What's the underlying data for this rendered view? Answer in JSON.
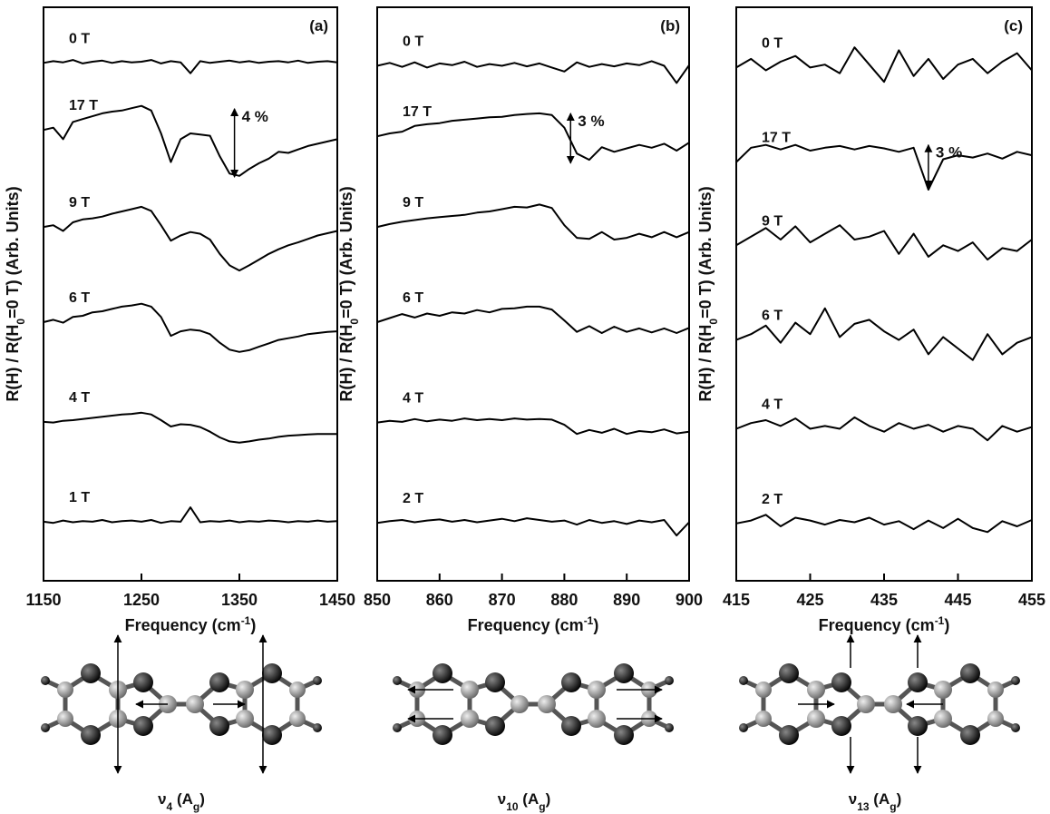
{
  "chart_data": [
    {
      "type": "line",
      "panel_label": "(a)",
      "x_label": [
        "Frequency (cm",
        "-1",
        ")"
      ],
      "y_label": [
        "R(H) / R(H",
        "0",
        "=0 T) (Arb. Units)"
      ],
      "mode_label": [
        "ν",
        "4",
        " (A",
        "g",
        ")"
      ],
      "x": [
        1150,
        1160,
        1170,
        1180,
        1190,
        1200,
        1210,
        1220,
        1230,
        1240,
        1250,
        1260,
        1270,
        1280,
        1290,
        1300,
        1310,
        1320,
        1330,
        1340,
        1350,
        1360,
        1370,
        1380,
        1390,
        1400,
        1410,
        1420,
        1430,
        1440,
        1450
      ],
      "xlim": [
        1150,
        1450
      ],
      "xticks": [
        1150,
        1250,
        1350,
        1450
      ],
      "ylim": [
        0,
        100
      ],
      "series": [
        {
          "name": "0 T",
          "color": "#000000",
          "values": [
            90.3,
            90.6,
            90.4,
            90.8,
            90.2,
            90.5,
            90.7,
            90.3,
            90.6,
            90.4,
            90.5,
            90.8,
            90.2,
            90.6,
            90.4,
            88.5,
            90.6,
            90.3,
            90.5,
            90.7,
            90.4,
            90.6,
            90.3,
            90.5,
            90.6,
            90.4,
            90.7,
            90.3,
            90.5,
            90.6,
            90.4
          ]
        },
        {
          "name": "17 T",
          "color": "#000000",
          "values": [
            78.6,
            79,
            77,
            80,
            80.5,
            81,
            81.5,
            81.8,
            82,
            82.4,
            82.8,
            82,
            78,
            73,
            77,
            78,
            77.8,
            77.6,
            74,
            71,
            70.6,
            71.8,
            72.8,
            73.6,
            74.8,
            74.6,
            75.2,
            75.8,
            76.2,
            76.6,
            77
          ]
        },
        {
          "name": "9 T",
          "color": "#000000",
          "values": [
            61.7,
            62,
            61,
            62.5,
            63,
            63.2,
            63.5,
            64,
            64.4,
            64.8,
            65.2,
            64.5,
            62,
            59.3,
            60.2,
            60.8,
            60.5,
            59.5,
            57,
            55,
            54.1,
            55,
            56,
            57,
            57.8,
            58.5,
            59,
            59.6,
            60.2,
            60.6,
            61
          ]
        },
        {
          "name": "6 T",
          "color": "#000000",
          "values": [
            45.1,
            45.5,
            45,
            46,
            46.2,
            46.8,
            47,
            47.4,
            47.8,
            48,
            48.3,
            47.8,
            46,
            42.7,
            43.5,
            43.8,
            43.6,
            43,
            41.5,
            40.3,
            39.9,
            40.2,
            40.8,
            41.4,
            42,
            42.3,
            42.6,
            43,
            43.2,
            43.4,
            43.5
          ]
        },
        {
          "name": "4 T",
          "color": "#000000",
          "values": [
            27.7,
            27.6,
            27.9,
            28,
            28.2,
            28.4,
            28.6,
            28.8,
            29,
            29.1,
            29.3,
            29,
            28,
            26.9,
            27.3,
            27.2,
            26.8,
            26,
            25,
            24.3,
            24.1,
            24.3,
            24.6,
            24.8,
            25.1,
            25.3,
            25.4,
            25.5,
            25.6,
            25.6,
            25.6
          ]
        },
        {
          "name": "1 T",
          "color": "#000000",
          "values": [
            10.3,
            10.1,
            10.5,
            10.2,
            10.4,
            10.3,
            10.6,
            10.2,
            10.4,
            10.5,
            10.3,
            10.6,
            10.1,
            10.4,
            10.3,
            12.8,
            10.2,
            10.4,
            10.3,
            10.5,
            10.2,
            10.4,
            10.3,
            10.5,
            10.4,
            10.2,
            10.4,
            10.3,
            10.5,
            10.3,
            10.4
          ]
        }
      ],
      "annotation": {
        "text": "4 %",
        "x": 1345,
        "y_range": [
          82.3,
          70.4
        ]
      }
    },
    {
      "type": "line",
      "panel_label": "(b)",
      "x_label": [
        "Frequency (cm",
        "-1",
        ")"
      ],
      "y_label": [
        "R(H) / R(H",
        "0",
        "=0 T) (Arb. Units)"
      ],
      "mode_label": [
        "ν",
        "10",
        " (A",
        "g",
        ")"
      ],
      "x": [
        850,
        852,
        854,
        856,
        858,
        860,
        862,
        864,
        866,
        868,
        870,
        872,
        874,
        876,
        878,
        880,
        882,
        884,
        886,
        888,
        890,
        892,
        894,
        896,
        898,
        900
      ],
      "xlim": [
        850,
        900
      ],
      "xticks": [
        850,
        860,
        870,
        880,
        890,
        900
      ],
      "ylim": [
        0,
        100
      ],
      "series": [
        {
          "name": "0 T",
          "color": "#000000",
          "values": [
            89.8,
            90.3,
            89.6,
            90.4,
            89.5,
            90.2,
            89.9,
            90.5,
            89.6,
            90.1,
            89.8,
            90.3,
            89.7,
            90.2,
            89.5,
            88.8,
            90.4,
            89.6,
            90.1,
            89.7,
            90.2,
            89.9,
            90.6,
            89.8,
            86.8,
            89.9
          ]
        },
        {
          "name": "17 T",
          "color": "#000000",
          "values": [
            77.5,
            78,
            78.3,
            79.3,
            79.6,
            79.8,
            80.2,
            80.4,
            80.6,
            80.8,
            80.9,
            81.2,
            81.4,
            81.5,
            81.2,
            79,
            74.5,
            73.4,
            75.6,
            74.8,
            75.4,
            76,
            75.5,
            76.2,
            75,
            76.4
          ]
        },
        {
          "name": "9 T",
          "color": "#000000",
          "values": [
            61.7,
            62.2,
            62.6,
            62.9,
            63.2,
            63.4,
            63.6,
            63.8,
            64.2,
            64.4,
            64.8,
            65.2,
            65.1,
            65.6,
            65,
            62,
            59.8,
            59.6,
            60.8,
            59.5,
            59.8,
            60.5,
            59.9,
            60.8,
            59.9,
            60.8
          ]
        },
        {
          "name": "6 T",
          "color": "#000000",
          "values": [
            45.1,
            45.8,
            46.5,
            45.9,
            46.6,
            46.2,
            46.8,
            46.6,
            47.2,
            46.8,
            47.4,
            47.5,
            47.8,
            47.8,
            47.3,
            45.4,
            43.4,
            44.4,
            43.2,
            44.3,
            43.4,
            44,
            43.3,
            44,
            43.2,
            44.1
          ]
        },
        {
          "name": "4 T",
          "color": "#000000",
          "values": [
            27.6,
            27.9,
            27.7,
            28.2,
            27.8,
            28.1,
            27.9,
            28.3,
            28,
            28.2,
            28,
            28.3,
            28.1,
            28.2,
            28.1,
            27.2,
            25.6,
            26.3,
            25.8,
            26.5,
            25.6,
            26.1,
            25.9,
            26.4,
            25.7,
            26
          ]
        },
        {
          "name": "2 T",
          "color": "#000000",
          "values": [
            10.1,
            10.4,
            10.6,
            10.2,
            10.5,
            10.7,
            10.3,
            10.6,
            10.2,
            10.5,
            10.8,
            10.4,
            10.9,
            10.6,
            10.3,
            10.5,
            9.8,
            10.6,
            10.1,
            10.4,
            9.9,
            10.5,
            10.2,
            10.6,
            7.9,
            10.2
          ]
        }
      ],
      "annotation": {
        "text": "3 %",
        "x": 881,
        "y_range": [
          81.5,
          72.8
        ]
      }
    },
    {
      "type": "line",
      "panel_label": "(c)",
      "x_label": [
        "Frequency (cm",
        "-1",
        ")"
      ],
      "y_label": [
        "R(H) / R(H",
        "0",
        "=0 T) (Arb. Units)"
      ],
      "mode_label": [
        "ν",
        "13",
        " (A",
        "g",
        ")"
      ],
      "x": [
        415,
        417,
        419,
        421,
        423,
        425,
        427,
        429,
        431,
        433,
        435,
        437,
        439,
        441,
        443,
        445,
        447,
        449,
        451,
        453,
        455
      ],
      "xlim": [
        415,
        455
      ],
      "xticks": [
        415,
        425,
        435,
        445,
        455
      ],
      "ylim": [
        0,
        100
      ],
      "series": [
        {
          "name": "0 T",
          "color": "#000000",
          "values": [
            89.5,
            91,
            89,
            90.5,
            91.5,
            89.5,
            90,
            88.5,
            93,
            90,
            87,
            92.5,
            88,
            91,
            87.5,
            90,
            91,
            88.5,
            90.5,
            92,
            89
          ]
        },
        {
          "name": "17 T",
          "color": "#000000",
          "values": [
            73,
            75.5,
            76,
            75.2,
            76,
            75,
            75.5,
            75.8,
            75.2,
            75.8,
            75.4,
            74.8,
            75.5,
            68.2,
            73.5,
            74.2,
            73.8,
            74.5,
            73.6,
            74.8,
            74.2
          ]
        },
        {
          "name": "9 T",
          "color": "#000000",
          "values": [
            58.5,
            60,
            61.5,
            59.5,
            61.8,
            59,
            60.5,
            62,
            59.5,
            60,
            61,
            57,
            60.5,
            56.5,
            58.5,
            57.5,
            59,
            56,
            58,
            57.5,
            59.5
          ]
        },
        {
          "name": "6 T",
          "color": "#000000",
          "values": [
            42,
            43,
            44.5,
            41.5,
            45,
            43,
            47.5,
            42.5,
            44.8,
            45.5,
            43.5,
            42,
            43.8,
            39.5,
            42.5,
            40.5,
            38.5,
            43,
            39.5,
            41.5,
            42.5
          ]
        },
        {
          "name": "4 T",
          "color": "#000000",
          "values": [
            26.5,
            27.5,
            28,
            27,
            28.3,
            26.5,
            27,
            26.5,
            28.5,
            27,
            26,
            27.5,
            26.5,
            27.2,
            26,
            27,
            26.5,
            24.5,
            27,
            26,
            26.8
          ]
        },
        {
          "name": "2 T",
          "color": "#000000",
          "values": [
            10,
            10.5,
            11.5,
            9.5,
            11,
            10.5,
            9.8,
            10.6,
            10.2,
            11,
            9.8,
            10.4,
            9,
            10.5,
            9.2,
            10.8,
            9.2,
            8.5,
            10.4,
            9.5,
            10.6
          ]
        }
      ],
      "annotation": {
        "text": "3 %",
        "x": 441,
        "y_range": [
          76,
          68.5
        ]
      }
    }
  ]
}
